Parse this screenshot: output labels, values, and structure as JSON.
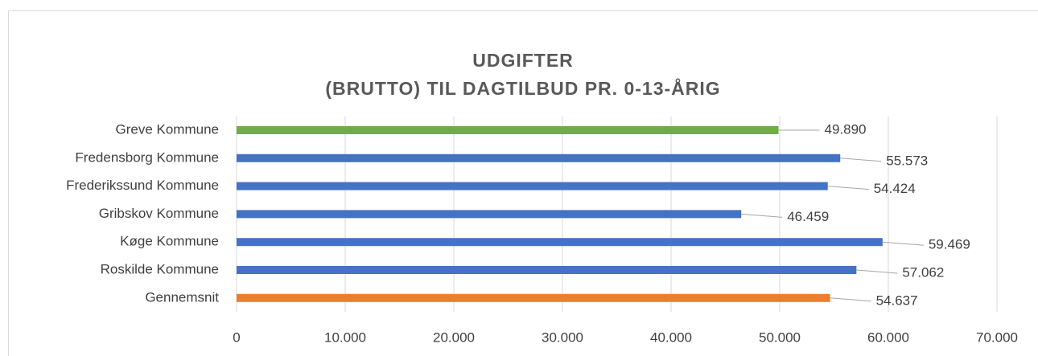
{
  "chart_data": {
    "type": "bar",
    "orientation": "horizontal",
    "title": [
      "UDGIFTER",
      "(BRUTTO) TIL DAGTILBUD PR. 0-13-ÅRIG"
    ],
    "categories": [
      "Greve Kommune",
      "Fredensborg Kommune",
      "Frederikssund Kommune",
      "Gribskov Kommune",
      "Køge Kommune",
      "Roskilde Kommune",
      "Gennemsnit"
    ],
    "values": [
      49890,
      55573,
      54424,
      46459,
      59469,
      57062,
      54637
    ],
    "value_labels": [
      "49.890",
      "55.573",
      "54.424",
      "46.459",
      "59.469",
      "57.062",
      "54.637"
    ],
    "colors": [
      "#70ad47",
      "#4472c4",
      "#4472c4",
      "#4472c4",
      "#4472c4",
      "#4472c4",
      "#ed7d31"
    ],
    "xlim": [
      0,
      70000
    ],
    "xticks": [
      0,
      {
        "value": 10000,
        "label": "10.000"
      },
      {
        "value": 20000,
        "label": "20.000"
      },
      {
        "value": 30000,
        "label": "30.000"
      },
      {
        "value": 40000,
        "label": "40.000"
      },
      {
        "value": 50000,
        "label": "50.000"
      },
      {
        "value": 60000,
        "label": "60.000"
      },
      {
        "value": 70000,
        "label": "70.000"
      }
    ],
    "grid": true
  }
}
